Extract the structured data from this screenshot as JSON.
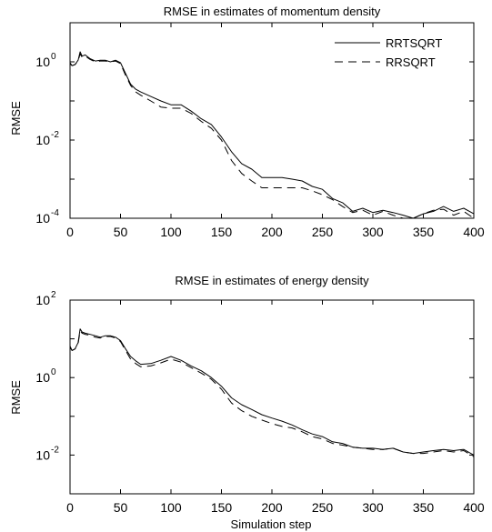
{
  "chart_data": [
    {
      "type": "line",
      "title": "RMSE in estimates of momentum density",
      "xlabel": "",
      "ylabel": "RMSE",
      "yscale": "log",
      "xlim": [
        0,
        400
      ],
      "ylim_exponents": [
        -4,
        1
      ],
      "xticks": [
        "0",
        "50",
        "100",
        "150",
        "200",
        "250",
        "300",
        "350",
        "400"
      ],
      "yticks": [
        {
          "base": "10",
          "exp": "0"
        },
        {
          "base": "10",
          "exp": "-2"
        },
        {
          "base": "10",
          "exp": "-4"
        }
      ],
      "legend_position": "top-right",
      "grid": false,
      "series": [
        {
          "name": "RRTSQRT",
          "style": "solid",
          "color": "#000000",
          "x": [
            0,
            2,
            5,
            8,
            10,
            12,
            15,
            20,
            25,
            30,
            35,
            40,
            45,
            50,
            55,
            60,
            65,
            70,
            80,
            90,
            100,
            110,
            120,
            130,
            140,
            150,
            160,
            170,
            180,
            190,
            200,
            210,
            220,
            230,
            240,
            250,
            260,
            270,
            280,
            290,
            300,
            310,
            320,
            330,
            340,
            350,
            360,
            370,
            380,
            390,
            400
          ],
          "y": [
            0.95,
            0.8,
            0.85,
            1.1,
            1.8,
            1.4,
            1.5,
            1.2,
            1.05,
            1.1,
            1.1,
            1.0,
            1.1,
            0.95,
            0.5,
            0.27,
            0.2,
            0.17,
            0.13,
            0.1,
            0.08,
            0.08,
            0.055,
            0.035,
            0.025,
            0.012,
            0.005,
            0.0025,
            0.0018,
            0.0011,
            0.0011,
            0.0011,
            0.001,
            0.0009,
            0.00065,
            0.00055,
            0.00032,
            0.00025,
            0.00015,
            0.00018,
            0.00014,
            0.00016,
            0.00014,
            0.00012,
            9e-05,
            0.00013,
            0.00015,
            0.0002,
            0.00015,
            0.00018,
            0.00013
          ]
        },
        {
          "name": "RRSQRT",
          "style": "dashed",
          "color": "#000000",
          "x": [
            0,
            2,
            5,
            8,
            10,
            12,
            15,
            20,
            25,
            30,
            35,
            40,
            45,
            50,
            55,
            60,
            65,
            70,
            80,
            90,
            100,
            110,
            120,
            130,
            140,
            150,
            160,
            170,
            180,
            190,
            200,
            210,
            220,
            230,
            240,
            250,
            260,
            270,
            280,
            290,
            300,
            310,
            320,
            330,
            340,
            350,
            360,
            370,
            380,
            390,
            400
          ],
          "y": [
            0.9,
            0.8,
            0.85,
            1.05,
            1.6,
            1.3,
            1.4,
            1.15,
            1.0,
            1.05,
            1.05,
            1.0,
            1.05,
            0.9,
            0.45,
            0.25,
            0.17,
            0.14,
            0.1,
            0.07,
            0.065,
            0.065,
            0.048,
            0.03,
            0.02,
            0.01,
            0.003,
            0.0014,
            0.0009,
            0.0006,
            0.0006,
            0.0006,
            0.0006,
            0.0006,
            0.0005,
            0.0004,
            0.0003,
            0.0002,
            0.00014,
            0.00016,
            0.00012,
            0.00015,
            0.00012,
            0.0001,
            8e-05,
            0.00013,
            0.00016,
            0.00017,
            0.00012,
            0.00015,
            0.0001
          ]
        }
      ]
    },
    {
      "type": "line",
      "title": "RMSE in estimates of energy density",
      "xlabel": "Simulation step",
      "ylabel": "RMSE",
      "yscale": "log",
      "xlim": [
        0,
        400
      ],
      "ylim_exponents": [
        -3,
        2
      ],
      "xticks": [
        "0",
        "50",
        "100",
        "150",
        "200",
        "250",
        "300",
        "350",
        "400"
      ],
      "yticks": [
        {
          "base": "10",
          "exp": "2"
        },
        {
          "base": "10",
          "exp": "0"
        },
        {
          "base": "10",
          "exp": "-2"
        }
      ],
      "legend_position": "none",
      "grid": false,
      "series": [
        {
          "name": "RRTSQRT",
          "style": "solid",
          "color": "#000000",
          "x": [
            0,
            2,
            5,
            8,
            10,
            12,
            15,
            20,
            25,
            30,
            35,
            40,
            45,
            50,
            55,
            60,
            65,
            70,
            80,
            90,
            100,
            110,
            120,
            130,
            140,
            150,
            160,
            170,
            180,
            190,
            200,
            210,
            220,
            230,
            240,
            250,
            260,
            270,
            280,
            290,
            300,
            310,
            320,
            330,
            340,
            350,
            360,
            370,
            380,
            390,
            400
          ],
          "y": [
            6.5,
            5.0,
            5.5,
            8.0,
            18,
            15,
            14,
            13,
            12,
            11,
            12,
            12,
            11,
            9,
            5.5,
            3.5,
            2.7,
            2.2,
            2.3,
            2.8,
            3.5,
            2.8,
            2.0,
            1.5,
            1.0,
            0.6,
            0.3,
            0.2,
            0.15,
            0.11,
            0.09,
            0.075,
            0.06,
            0.045,
            0.035,
            0.03,
            0.022,
            0.02,
            0.016,
            0.015,
            0.015,
            0.014,
            0.015,
            0.012,
            0.011,
            0.012,
            0.013,
            0.014,
            0.013,
            0.014,
            0.01
          ]
        },
        {
          "name": "RRSQRT",
          "style": "dashed",
          "color": "#000000",
          "x": [
            0,
            2,
            5,
            8,
            10,
            12,
            15,
            20,
            25,
            30,
            35,
            40,
            45,
            50,
            55,
            60,
            65,
            70,
            80,
            90,
            100,
            110,
            120,
            130,
            140,
            150,
            160,
            170,
            180,
            190,
            200,
            210,
            220,
            230,
            240,
            250,
            260,
            270,
            280,
            290,
            300,
            310,
            320,
            330,
            340,
            350,
            360,
            370,
            380,
            390,
            400
          ],
          "y": [
            6.0,
            5.0,
            5.5,
            7.5,
            16,
            14,
            13,
            12.5,
            11,
            10.5,
            11.5,
            11.5,
            10.5,
            8.5,
            5.0,
            3.0,
            2.3,
            1.9,
            2.0,
            2.4,
            3.0,
            2.5,
            1.8,
            1.3,
            0.9,
            0.5,
            0.22,
            0.14,
            0.1,
            0.08,
            0.065,
            0.055,
            0.05,
            0.04,
            0.03,
            0.026,
            0.02,
            0.018,
            0.016,
            0.015,
            0.014,
            0.014,
            0.015,
            0.012,
            0.011,
            0.011,
            0.012,
            0.013,
            0.012,
            0.013,
            0.009
          ]
        }
      ]
    }
  ]
}
